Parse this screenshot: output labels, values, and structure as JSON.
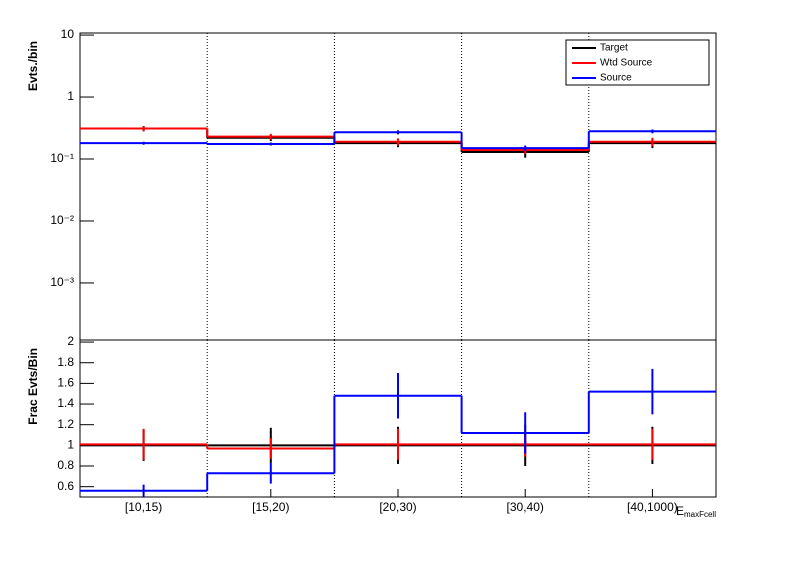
{
  "chart_data": [
    {
      "type": "step",
      "ylabel": "Evts./bin",
      "log_scale": true,
      "grid": "x",
      "ylim": [
        0.00012,
        10.8
      ],
      "yticks": [
        10,
        1,
        {
          "value": 0.1,
          "label": "10⁻¹"
        },
        {
          "value": 0.01,
          "label": "10⁻²"
        },
        {
          "value": 0.001,
          "label": "10⁻³"
        }
      ],
      "legend": "top-right",
      "series": [
        {
          "name": "Target",
          "color": "#000000",
          "values": [
            0.31,
            0.22,
            0.18,
            0.13,
            0.18
          ],
          "errors": [
            0.03,
            0.025,
            0.025,
            0.025,
            0.03
          ]
        },
        {
          "name": "Wtd Source",
          "color": "#ff0000",
          "values": [
            0.31,
            0.23,
            0.19,
            0.14,
            0.19
          ],
          "errors": [
            0.03,
            0.025,
            0.025,
            0.02,
            0.03
          ]
        },
        {
          "name": "Source",
          "color": "#0000ff",
          "values": [
            0.18,
            0.175,
            0.27,
            0.15,
            0.28
          ],
          "errors": [
            0.01,
            0.01,
            0.02,
            0.015,
            0.02
          ]
        }
      ]
    },
    {
      "type": "step",
      "ylabel": "Frac Evts/Bin",
      "xlabel": "E_maxFcell",
      "log_scale": false,
      "grid": "x",
      "categories": [
        "[10,15)",
        "[15,20)",
        "[20,30)",
        "[30,40)",
        "[40,1000)"
      ],
      "ylim": [
        0.5,
        2.02
      ],
      "yticks": [
        0.6,
        0.8,
        1,
        1.2,
        1.4,
        1.6,
        1.8,
        2
      ],
      "series": [
        {
          "color": "#000000",
          "values": [
            1.0,
            1.0,
            1.0,
            1.0,
            1.0
          ],
          "errors": [
            0.15,
            0.17,
            0.18,
            0.2,
            0.18
          ]
        },
        {
          "color": "#ff0000",
          "values": [
            1.01,
            0.97,
            1.01,
            1.01,
            1.01
          ],
          "errors": [
            0.15,
            0.1,
            0.15,
            0.12,
            0.15
          ]
        },
        {
          "color": "#0000ff",
          "values": [
            0.56,
            0.73,
            1.48,
            1.12,
            1.52
          ],
          "errors": [
            0.06,
            0.1,
            0.22,
            0.2,
            0.22
          ]
        }
      ]
    }
  ]
}
